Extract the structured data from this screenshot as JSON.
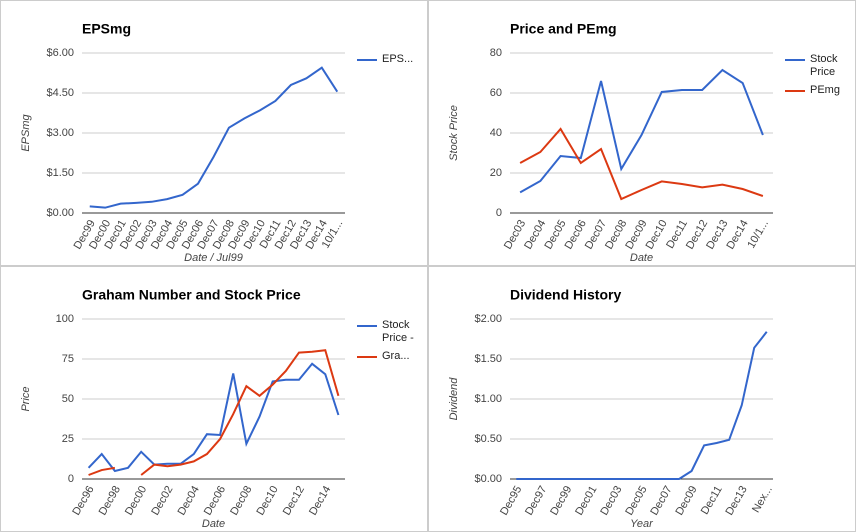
{
  "chart_data": [
    {
      "type": "line",
      "title": "EPSmg",
      "x_label": "Date / Jul99",
      "y_label": "EPSmg",
      "categories": [
        "Dec99",
        "Dec00",
        "Dec01",
        "Dec02",
        "Dec03",
        "Dec04",
        "Dec05",
        "Dec06",
        "Dec07",
        "Dec08",
        "Dec09",
        "Dec10",
        "Dec11",
        "Dec12",
        "Dec13",
        "Dec14",
        "10/1..."
      ],
      "series": [
        {
          "name": "EPS...",
          "color": "#3366cc",
          "values": [
            0.25,
            0.2,
            0.35,
            0.38,
            0.42,
            0.52,
            0.68,
            1.1,
            2.1,
            3.2,
            3.55,
            3.85,
            4.2,
            4.8,
            5.05,
            5.45,
            4.55
          ]
        }
      ],
      "ylim": [
        0,
        6
      ],
      "yticks": [
        {
          "value": 0,
          "label": "$0.00"
        },
        {
          "value": 1.5,
          "label": "$1.50"
        },
        {
          "value": 3,
          "label": "$3.00"
        },
        {
          "value": 4.5,
          "label": "$4.50"
        },
        {
          "value": 6,
          "label": "$6.00"
        }
      ],
      "grid": true,
      "legend": "right"
    },
    {
      "type": "line",
      "title": "Price and PEmg",
      "x_label": "Date",
      "y_label": "Stock Price",
      "categories": [
        "Dec03",
        "Dec04",
        "Dec05",
        "Dec06",
        "Dec07",
        "Dec08",
        "Dec09",
        "Dec10",
        "Dec11",
        "Dec12",
        "Dec13",
        "Dec14",
        "10/1..."
      ],
      "series": [
        {
          "name": "Stock Price",
          "color": "#3366cc",
          "values": [
            10.3,
            16,
            28.5,
            27.5,
            66,
            22,
            39,
            60.5,
            61.5,
            61.5,
            71.5,
            65,
            39
          ]
        },
        {
          "name": "PEmg",
          "color": "#dc3912",
          "values": [
            25,
            30.5,
            42,
            25,
            32,
            7,
            11.5,
            15.8,
            14.5,
            12.8,
            14.2,
            12,
            8.5
          ]
        }
      ],
      "ylim": [
        0,
        80
      ],
      "yticks": [
        0,
        20,
        40,
        60,
        80
      ],
      "grid": true,
      "legend": "right"
    },
    {
      "type": "line",
      "title": "Graham Number and Stock Price",
      "x_label": "Date",
      "y_label": "Price",
      "categories": [
        "Dec96",
        null,
        "Dec98",
        null,
        "Dec00",
        null,
        "Dec02",
        null,
        "Dec04",
        null,
        "Dec06",
        null,
        "Dec08",
        null,
        "Dec10",
        null,
        "Dec12",
        null,
        "Dec14",
        null
      ],
      "series": [
        {
          "name": "Stock Price -",
          "color": "#3366cc",
          "values": [
            7,
            15.6,
            5,
            7,
            17,
            9,
            9.5,
            9.5,
            15.6,
            28,
            27.5,
            66,
            22,
            39,
            61,
            62,
            62,
            72,
            65.5,
            40
          ]
        },
        {
          "name": "Gra...",
          "color": "#dc3912",
          "values": [
            2.5,
            5.6,
            7,
            null,
            2.5,
            9,
            8,
            9,
            11,
            15.6,
            25,
            40.6,
            58,
            52,
            59,
            67.5,
            79,
            79.5,
            80.5,
            52
          ]
        }
      ],
      "ylim": [
        0,
        100
      ],
      "yticks": [
        0,
        25,
        50,
        75,
        100
      ],
      "grid": true,
      "legend": "right"
    },
    {
      "type": "line",
      "title": "Dividend History",
      "x_label": "Year",
      "y_label": "Dividend",
      "categories": [
        "Dec95",
        null,
        "Dec97",
        null,
        "Dec99",
        null,
        "Dec01",
        null,
        "Dec03",
        null,
        "Dec05",
        null,
        "Dec07",
        null,
        "Dec09",
        null,
        "Dec11",
        null,
        "Dec13",
        null,
        "Nex..."
      ],
      "series": [
        {
          "name": null,
          "color": "#3366cc",
          "values": [
            0,
            0,
            0,
            0,
            0,
            0,
            0,
            0,
            0,
            0,
            0,
            0,
            0,
            0,
            0.1,
            0.42,
            0.45,
            0.49,
            0.92,
            1.64,
            1.84
          ]
        }
      ],
      "ylim": [
        0,
        2
      ],
      "yticks": [
        {
          "value": 0,
          "label": "$0.00"
        },
        {
          "value": 0.5,
          "label": "$0.50"
        },
        {
          "value": 1,
          "label": "$1.00"
        },
        {
          "value": 1.5,
          "label": "$1.50"
        },
        {
          "value": 2,
          "label": "$2.00"
        }
      ],
      "grid": true,
      "legend": "none"
    }
  ]
}
